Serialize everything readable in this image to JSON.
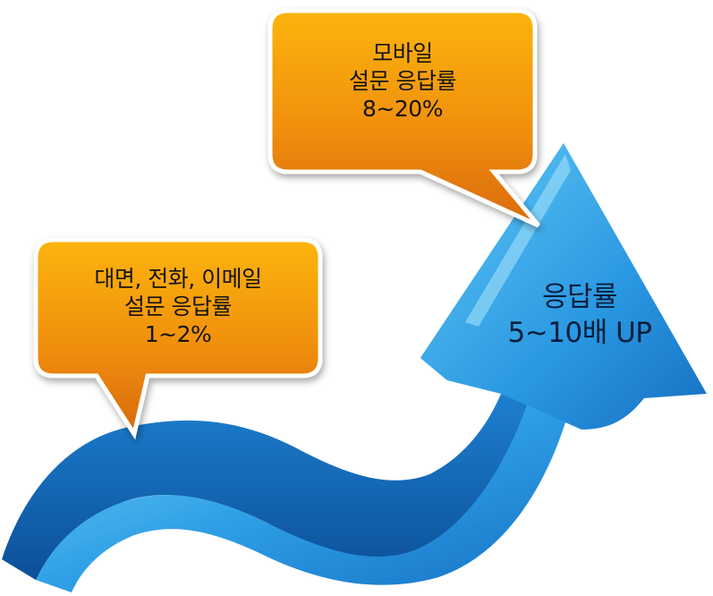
{
  "bubbles": {
    "offline": {
      "line1": "대면, 전화, 이메일",
      "line2": "설문 응답률",
      "line3": "1~2%"
    },
    "mobile": {
      "line1": "모바일",
      "line2": "설문 응답률",
      "line3": "8~20%"
    }
  },
  "arrow": {
    "line1": "응답률",
    "line2": "5~10배 UP"
  },
  "colors": {
    "bubble_top": "#fcb40c",
    "bubble_bottom": "#d96a07",
    "arrow_light": "#5cc5f3",
    "arrow_mid": "#2a9ae3",
    "arrow_dark": "#0f5fb0"
  }
}
